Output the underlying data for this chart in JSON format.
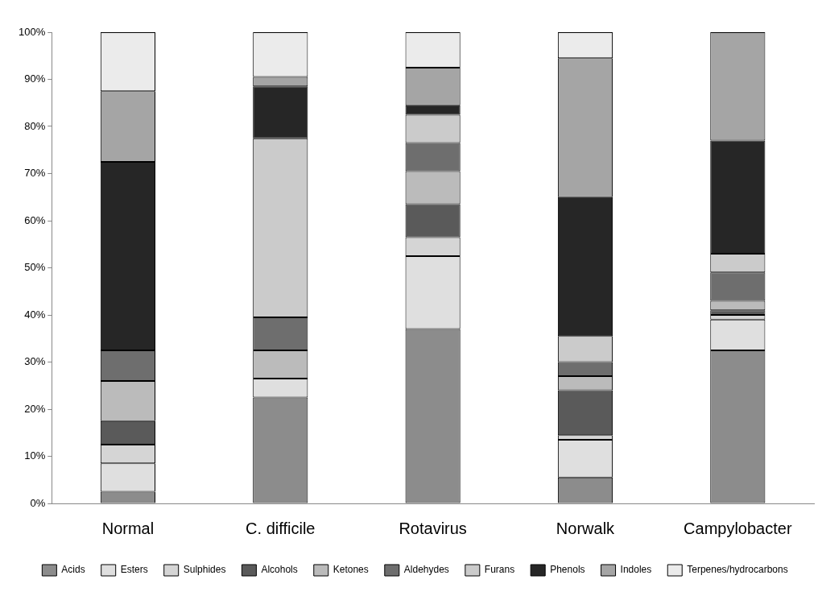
{
  "chart_data": {
    "type": "bar",
    "stacked": true,
    "categories": [
      "Normal",
      "C. difficile",
      "Rotavirus",
      "Norwalk",
      "Campylobacter"
    ],
    "series": [
      {
        "name": "Acids",
        "color": "#8c8c8c",
        "values": [
          2.5,
          22.5,
          37,
          5.5,
          32.5
        ]
      },
      {
        "name": "Esters",
        "color": "#dfdfdf",
        "values": [
          6,
          4,
          15.5,
          8,
          6.5
        ]
      },
      {
        "name": "Sulphides",
        "color": "#d5d5d5",
        "values": [
          4,
          0,
          4,
          1,
          1
        ]
      },
      {
        "name": "Alcohols",
        "color": "#5a5a5a",
        "values": [
          5,
          0,
          7,
          9.5,
          1
        ]
      },
      {
        "name": "Ketones",
        "color": "#bbbbbb",
        "values": [
          8.5,
          6,
          7,
          3,
          2
        ]
      },
      {
        "name": "Aldehydes",
        "color": "#6e6e6e",
        "values": [
          6.5,
          7,
          6,
          3,
          6
        ]
      },
      {
        "name": "Furans",
        "color": "#cbcbcb",
        "values": [
          0,
          38,
          6,
          5.5,
          4
        ]
      },
      {
        "name": "Phenols",
        "color": "#262626",
        "values": [
          40,
          11,
          2,
          29.5,
          24
        ]
      },
      {
        "name": "Indoles",
        "color": "#a5a5a5",
        "values": [
          15,
          2,
          8,
          29.5,
          23
        ]
      },
      {
        "name": "Terpenes/hydrocarbons",
        "color": "#ebebeb",
        "values": [
          12.5,
          9.5,
          7.5,
          5.5,
          0
        ]
      }
    ],
    "ylim": [
      0,
      100
    ],
    "yticks": [
      {
        "value": 0,
        "label": "0%"
      },
      {
        "value": 10,
        "label": "10%"
      },
      {
        "value": 20,
        "label": "20%"
      },
      {
        "value": 30,
        "label": "30%"
      },
      {
        "value": 40,
        "label": "40%"
      },
      {
        "value": 50,
        "label": "50%"
      },
      {
        "value": 60,
        "label": "60%"
      },
      {
        "value": 70,
        "label": "70%"
      },
      {
        "value": 80,
        "label": "80%"
      },
      {
        "value": 90,
        "label": "90%"
      },
      {
        "value": 100,
        "label": "100%"
      }
    ],
    "grid": false,
    "legend": "bottom"
  }
}
